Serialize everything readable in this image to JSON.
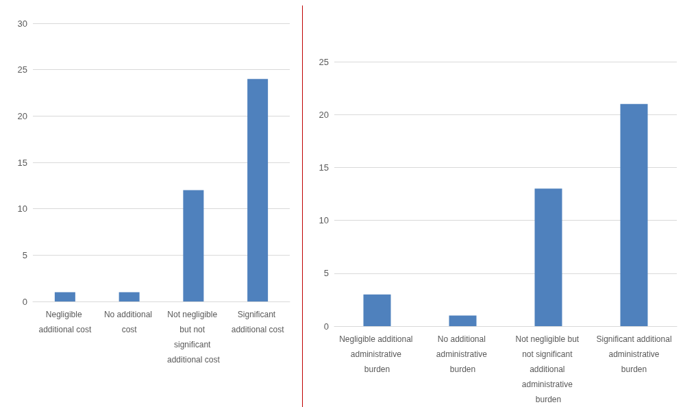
{
  "chart_data": [
    {
      "type": "bar",
      "categories": [
        "Negligible additional cost",
        "No additional cost",
        "Not negligible but not significant additional cost",
        "Significant additional cost"
      ],
      "values": [
        1,
        1,
        12,
        24
      ],
      "color": "#4f81bd",
      "ylim": [
        0,
        30
      ],
      "yticks": [
        0,
        5,
        10,
        15,
        20,
        25,
        30
      ],
      "grid": "y"
    },
    {
      "type": "bar",
      "categories": [
        "Negligible additional administrative burden",
        "No additional administrative burden",
        "Not negligible but not significant additional administrative burden",
        "Significant additional administrative burden"
      ],
      "values": [
        3,
        1,
        13,
        21
      ],
      "color": "#4f81bd",
      "ylim": [
        0,
        25
      ],
      "yticks": [
        0,
        5,
        10,
        15,
        20,
        25
      ],
      "grid": "y"
    }
  ]
}
